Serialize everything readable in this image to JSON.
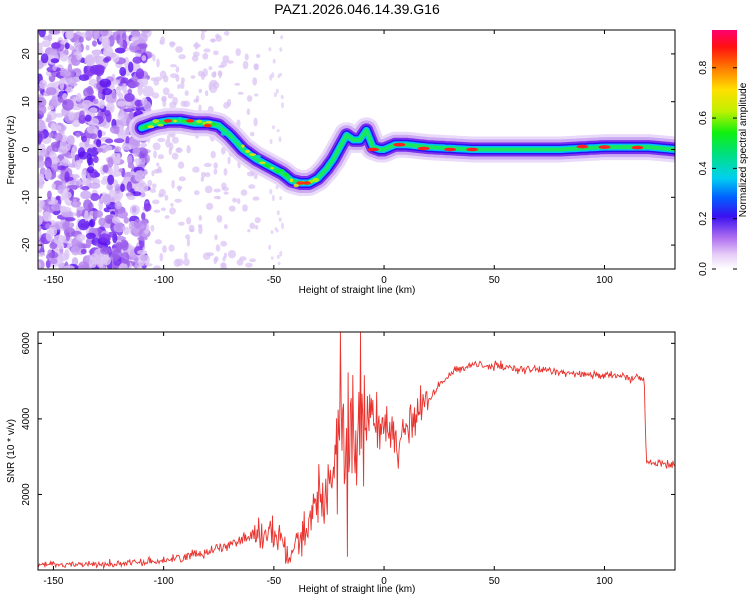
{
  "title": "PAZ1.2026.046.14.39.G16",
  "chart_data": [
    {
      "type": "heatmap",
      "xlabel": "Height of straight line (km)",
      "ylabel": "Frequency (Hz)",
      "xlim": [
        -157,
        132
      ],
      "ylim": [
        -25,
        25
      ],
      "xticks": [
        -150,
        -100,
        -50,
        0,
        50,
        100
      ],
      "yticks": [
        -20,
        -10,
        0,
        10,
        20
      ],
      "ridge": {
        "x": [
          -110,
          -104,
          -98,
          -92,
          -86,
          -80,
          -75,
          -70,
          -64,
          -58,
          -52,
          -46,
          -42,
          -38,
          -34,
          -30,
          -26,
          -23,
          -20,
          -17,
          -14,
          -11,
          -8,
          -5,
          -2,
          0,
          5,
          10,
          20,
          40,
          60,
          80,
          100,
          120,
          132
        ],
        "y": [
          4.5,
          5.5,
          6,
          6,
          5.5,
          5.5,
          5,
          3,
          0,
          -2,
          -3.5,
          -5,
          -6.5,
          -7,
          -7,
          -6,
          -4,
          -2,
          0.5,
          3,
          2,
          2,
          4,
          0.5,
          0,
          0,
          1,
          1,
          0.5,
          0,
          0,
          0,
          0.5,
          0.5,
          0
        ]
      },
      "colorbar": {
        "label": "Normalized spectral amplitude",
        "range": [
          0,
          0.95
        ],
        "ticks": [
          0.0,
          0.2,
          0.4,
          0.6,
          0.8
        ]
      }
    },
    {
      "type": "line",
      "xlabel": "Height of straight line (km)",
      "ylabel": "SNR (10 * v/v)",
      "xlim": [
        -157,
        132
      ],
      "ylim": [
        0,
        6300
      ],
      "xticks": [
        -150,
        -100,
        -50,
        0,
        50,
        100
      ],
      "yticks": [
        2000,
        4000,
        6000
      ],
      "series": [
        {
          "name": "SNR",
          "color": "#e8332e",
          "x": [
            -157,
            -140,
            -120,
            -100,
            -90,
            -80,
            -70,
            -60,
            -52,
            -47,
            -43,
            -38,
            -33,
            -28,
            -24,
            -20,
            -16,
            -12,
            -8,
            -4,
            0,
            5,
            10,
            15,
            20,
            30,
            40,
            50,
            60,
            70,
            80,
            90,
            100,
            110,
            118,
            119,
            125,
            132
          ],
          "y": [
            150,
            150,
            160,
            250,
            350,
            500,
            700,
            900,
            1000,
            800,
            400,
            900,
            1500,
            2000,
            2500,
            3000,
            3500,
            3500,
            3700,
            3900,
            3850,
            3600,
            3600,
            4100,
            4500,
            5200,
            5450,
            5400,
            5300,
            5300,
            5250,
            5200,
            5150,
            5100,
            5050,
            2850,
            2800,
            2800
          ]
        }
      ]
    }
  ]
}
